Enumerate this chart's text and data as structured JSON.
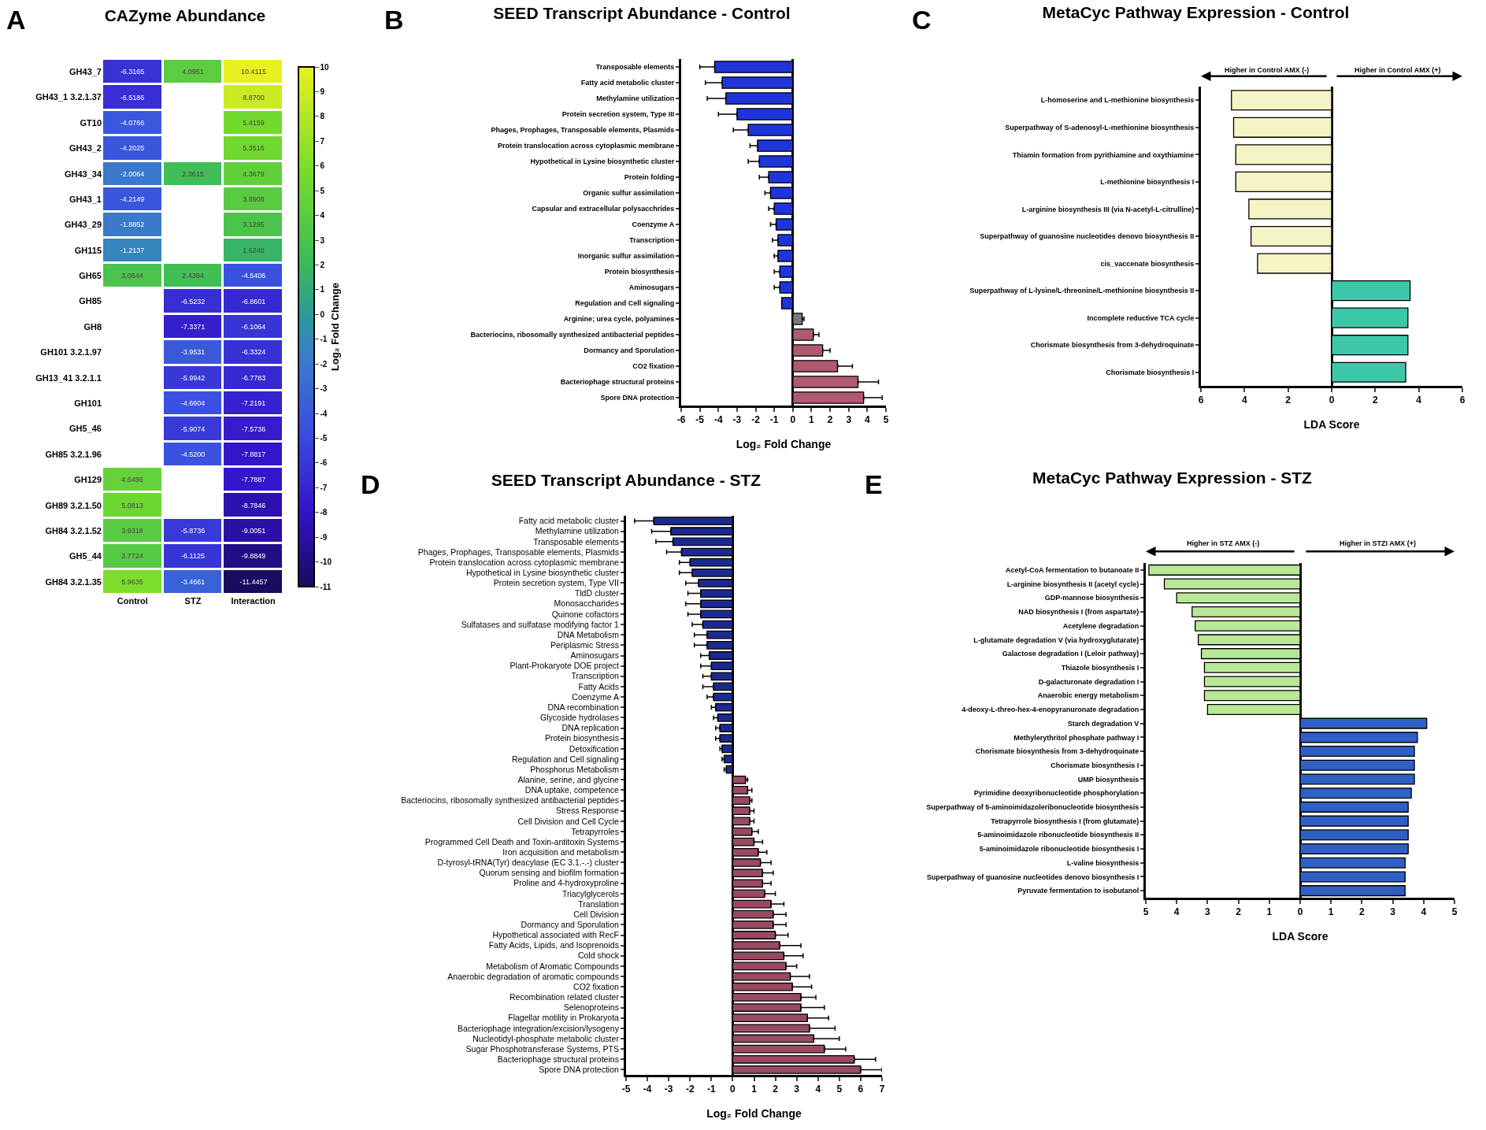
{
  "chart_data": [
    {
      "type": "heatmap",
      "title": "CAZyme Abundance",
      "annotations": [
        "A"
      ],
      "clabel": "Log₂ Fold Change",
      "categories": [
        "Control",
        "STZ",
        "Interaction"
      ],
      "y_categories": [
        "GH43_7",
        "GH43_1 3.2.1.37",
        "GT10",
        "GH43_2",
        "GH43_34",
        "GH43_1",
        "GH43_29",
        "GH115",
        "GH65",
        "GH85",
        "GH8",
        "GH101 3.2.1.97",
        "GH13_41 3.2.1.1",
        "GH101",
        "GH5_46",
        "GH85 3.2.1.96",
        "GH129",
        "GH89 3.2.1.50",
        "GH84 3.2.1.52",
        "GH5_44",
        "GH84 3.2.1.35"
      ],
      "cells": [
        [
          -6.3165,
          4.0951,
          10.4115
        ],
        [
          -6.5186,
          null,
          8.87
        ],
        [
          -4.0766,
          null,
          5.4159
        ],
        [
          -4.2025,
          null,
          5.3516
        ],
        [
          -2.0064,
          2.3615,
          4.3679
        ],
        [
          -4.2149,
          null,
          3.8908
        ],
        [
          -1.8852,
          null,
          3.1295
        ],
        [
          -1.2137,
          null,
          1.6248
        ],
        [
          3.0644,
          2.4394,
          -4.5406
        ],
        [
          null,
          -6.5232,
          -6.8601
        ],
        [
          null,
          -7.3371,
          -6.1064
        ],
        [
          null,
          -3.9531,
          -6.3324
        ],
        [
          null,
          -5.9942,
          -6.7783
        ],
        [
          null,
          -4.6604,
          -7.2191
        ],
        [
          null,
          -5.9074,
          -7.5736
        ],
        [
          null,
          -4.52,
          -7.8817
        ],
        [
          4.6486,
          null,
          -7.7887
        ],
        [
          5.0813,
          null,
          -8.7846
        ],
        [
          3.9318,
          -5.8736,
          -9.0051
        ],
        [
          3.7724,
          -6.1125,
          -9.8849
        ],
        [
          5.9635,
          -3.4661,
          -11.4457
        ]
      ],
      "cell_labels": [
        [
          "-6.3165",
          "4.0951",
          "10.4115"
        ],
        [
          "-6.5186",
          null,
          "8.8700"
        ],
        [
          "-4.0766",
          null,
          "5.4159"
        ],
        [
          "-4.2025",
          null,
          "5.3516"
        ],
        [
          "-2.0064",
          "2.3615",
          "4.3679"
        ],
        [
          "-4.2149",
          null,
          "3.8908"
        ],
        [
          "-1.8852",
          null,
          "3.1295"
        ],
        [
          "-1.2137",
          null,
          "1.6248"
        ],
        [
          "3.0644",
          "2.4394",
          "-4.5406"
        ],
        [
          null,
          "-6.5232",
          "-6.8601"
        ],
        [
          null,
          "-7.3371",
          "-6.1064"
        ],
        [
          null,
          "-3.9531",
          "-6.3324"
        ],
        [
          null,
          "-5.9942",
          "-6.7783"
        ],
        [
          null,
          "-4.6604",
          "-7.2191"
        ],
        [
          null,
          "-5.9074",
          "-7.5736"
        ],
        [
          null,
          "-4.5200",
          "-7.8817"
        ],
        [
          "4.6486",
          null,
          "-7.7887"
        ],
        [
          "5.0813",
          null,
          "-8.7846"
        ],
        [
          "3.9318",
          "-5.8736",
          "-9.0051"
        ],
        [
          "3.7724",
          "-6.1125",
          "-9.8849"
        ],
        [
          "5.9635",
          "-3.4661",
          "-11.4457"
        ]
      ],
      "clim": [
        -11,
        10
      ],
      "cticks": [
        -11,
        -10,
        -9,
        -8,
        -7,
        -6,
        -5,
        -4,
        -3,
        -2,
        -1,
        0,
        1,
        2,
        3,
        4,
        5,
        6,
        7,
        8,
        9,
        10
      ]
    },
    {
      "type": "bar",
      "orientation": "horizontal",
      "title": "SEED Transcript Abundance - Control",
      "annotations": [
        "B"
      ],
      "xlabel": "Log₂ Fold Change",
      "categories": [
        "Transposable elements",
        "Fatty acid metabolic cluster",
        "Methylamine utilization",
        "Protein secretion system, Type III",
        "Phages, Prophages, Transposable elements, Plasmids",
        "Protein translocation across cytoplasmic membrane",
        "Hypothetical in Lysine biosynthetic cluster",
        "Protein folding",
        "Organic sulfur assimilation",
        "Capsular and extracellular polysacchrides",
        "Coenzyme A",
        "Transcription",
        "Inorganic sulfur assimilation",
        "Protein biosynthesis",
        "Aminosugars",
        "Regulation and Cell signaling",
        "Arginine; urea cycle, polyamines",
        "Bacteriocins, ribosomally synthesized antibacterial peptides",
        "Dormancy and Sporulation",
        "CO2 fixation",
        "Bacteriophage structural proteins",
        "Spore DNA protection"
      ],
      "values": [
        -4.2,
        -3.8,
        -3.6,
        -3.0,
        -2.4,
        -1.9,
        -1.8,
        -1.3,
        -1.2,
        -1.0,
        -0.9,
        -0.8,
        -0.8,
        -0.7,
        -0.7,
        -0.6,
        0.5,
        1.1,
        1.6,
        2.4,
        3.5,
        3.8
      ],
      "errors": [
        [
          -5.0,
          -4.2
        ],
        [
          -4.7,
          -3.8
        ],
        [
          -4.6,
          -3.6
        ],
        [
          -4.0,
          -3.0
        ],
        [
          -3.2,
          -2.4
        ],
        [
          -2.3,
          -1.9
        ],
        [
          -2.4,
          -1.8
        ],
        [
          -1.8,
          -1.3
        ],
        [
          -1.5,
          -1.2
        ],
        [
          -1.3,
          -1.0
        ],
        [
          -1.2,
          -0.9
        ],
        [
          -1.1,
          -0.8
        ],
        [
          -1.0,
          -0.8
        ],
        [
          -1.0,
          -0.7
        ],
        [
          -1.0,
          -0.7
        ],
        null,
        [
          0.5,
          0.6
        ],
        [
          1.1,
          1.4
        ],
        [
          1.6,
          2.0
        ],
        [
          2.4,
          3.2
        ],
        [
          3.5,
          4.6
        ],
        [
          3.8,
          4.8
        ]
      ],
      "colors": [
        "#1f35d8",
        "#1f35d8",
        "#1f35d8",
        "#1f35d8",
        "#1f35d8",
        "#1f35d8",
        "#1f35d8",
        "#1f35d8",
        "#1f35d8",
        "#1f35d8",
        "#1f35d8",
        "#1f35d8",
        "#1f35d8",
        "#1f35d8",
        "#1f35d8",
        "#1f35d8",
        "#7a7a7a",
        "#b05a6e",
        "#b05a6e",
        "#b05a6e",
        "#b05a6e",
        "#b05a6e"
      ],
      "xlim": [
        -6,
        5
      ],
      "xticks": [
        -6,
        -5,
        -4,
        -3,
        -2,
        -1,
        0,
        1,
        2,
        3,
        4,
        5
      ]
    },
    {
      "type": "bar",
      "orientation": "horizontal",
      "title": "MetaCyc Pathway Expression - Control",
      "annotations": [
        "C",
        "Higher in Control AMX (-)",
        "Higher in Control AMX (+)"
      ],
      "xlabel": "LDA Score",
      "categories": [
        "L-homoserine and L-methionine biosynthesis",
        "Superpathway of S-adenosyl-L-methionine biosynthesis",
        "Thiamin formation from pyrithiamine and oxythiamine",
        "L-methionine biosynthesis I",
        "L-arginine biosynthesis III (via N-acetyl-L-citrulline)",
        "Superpathway of guanosine nucleotides denovo biosynthesis II",
        "cis_vaccenate biosynthesis",
        "Superpathway of L-lysine/L-threonine/L-methionine biosynthesis II",
        "Incomplete reductive TCA cycle",
        "Chorismate biosynthesis from 3-dehydroquinate",
        "Chorismate biosynthesis I"
      ],
      "values": [
        -4.6,
        -4.5,
        -4.4,
        -4.4,
        -3.8,
        -3.7,
        -3.4,
        3.6,
        3.5,
        3.5,
        3.4
      ],
      "colors": [
        "#f4f4c4",
        "#f4f4c4",
        "#f4f4c4",
        "#f4f4c4",
        "#f4f4c4",
        "#f4f4c4",
        "#f4f4c4",
        "#3cc8a8",
        "#3cc8a8",
        "#3cc8a8",
        "#3cc8a8"
      ],
      "xlim": [
        -6,
        6
      ],
      "xticks": [
        {
          "value": -6,
          "label": "6"
        },
        {
          "value": -4,
          "label": "4"
        },
        {
          "value": -2,
          "label": "2"
        },
        0,
        2,
        4,
        6
      ]
    },
    {
      "type": "bar",
      "orientation": "horizontal",
      "title": "SEED Transcript Abundance - STZ",
      "annotations": [
        "D"
      ],
      "xlabel": "Log₂ Fold Change",
      "categories": [
        "Fatty acid metabolic cluster",
        "Methylamine utilization",
        "Transposable elements",
        "Phages, Prophages, Transposable elements, Plasmids",
        "Protein translocation across cytoplasmic membrane",
        "Hypothetical in Lysine biosynthetic cluster",
        "Protein secretion system, Type VII",
        "TldD cluster",
        "Monosaccharides",
        "Quinone cofactors",
        "Sulfatases and sulfatase modifying factor 1",
        "DNA Metabolism",
        "Periplasmic Stress",
        "Aminosugars",
        "Plant-Prokaryote DOE project",
        "Transcription",
        "Fatty Acids",
        "Coenzyme A",
        "DNA recombination",
        "Glycoside hydrolases",
        "DNA replication",
        "Protein biosynthesis",
        "Detoxification",
        "Regulation and Cell signaling",
        "Phosphorus Metabolism",
        "Alanine, serine, and glycine",
        "DNA uptake, competence",
        "Bacteriocins, ribosomally synthesized antibacterial peptides",
        "Stress Response",
        "Cell Division and Cell Cycle",
        "Tetrapyrroles",
        "Programmed Cell Death and Toxin-antitoxin Systems",
        "Iron acquisition and metabolism",
        "D-tyrosyl-tRNA(Tyr) deacylase (EC 3.1.-.-) cluster",
        "Quorum sensing and biofilm formation",
        "Proline and 4-hydroxyproline",
        "Triacylglycerols",
        "Translation",
        "Cell Division",
        "Dormancy and Sporulation",
        "Hypothetical associated with RecF",
        "Fatty Acids, Lipids, and Isoprenoids",
        "Cold shock",
        "Metabolism of Aromatic Compounds",
        "Anaerobic degradation of aromatic compounds",
        "CO2 fixation",
        "Recombination related cluster",
        "Selenoproteins",
        "Flagellar motility in Prokaryota",
        "Bacteriophage integration/excision/lysogeny",
        "Nucleotidyl-phosphate metabolic cluster",
        "Sugar Phosphotransferase Systems, PTS",
        "Bacteriophage structural proteins",
        "Spore DNA protection"
      ],
      "values": [
        -3.7,
        -2.9,
        -2.8,
        -2.4,
        -2.0,
        -1.9,
        -1.6,
        -1.5,
        -1.5,
        -1.5,
        -1.4,
        -1.2,
        -1.2,
        -1.1,
        -1.0,
        -1.0,
        -0.9,
        -0.9,
        -0.8,
        -0.7,
        -0.6,
        -0.6,
        -0.5,
        -0.4,
        -0.3,
        0.6,
        0.7,
        0.8,
        0.8,
        0.8,
        0.9,
        1.0,
        1.2,
        1.3,
        1.4,
        1.4,
        1.5,
        1.8,
        1.9,
        1.9,
        2.0,
        2.2,
        2.4,
        2.5,
        2.7,
        2.8,
        3.2,
        3.2,
        3.5,
        3.6,
        3.8,
        4.3,
        5.7,
        6.0
      ],
      "errors": [
        [
          -4.6,
          -3.7
        ],
        [
          -3.8,
          -2.9
        ],
        [
          -3.6,
          -2.8
        ],
        [
          -3.1,
          -2.4
        ],
        [
          -2.5,
          -2.0
        ],
        [
          -2.5,
          -1.9
        ],
        [
          -2.2,
          -1.6
        ],
        [
          -2.1,
          -1.5
        ],
        [
          -2.2,
          -1.5
        ],
        [
          -2.1,
          -1.5
        ],
        [
          -1.9,
          -1.4
        ],
        [
          -1.8,
          -1.2
        ],
        [
          -1.8,
          -1.2
        ],
        [
          -1.5,
          -1.1
        ],
        [
          -1.5,
          -1.0
        ],
        [
          -1.4,
          -1.0
        ],
        [
          -1.4,
          -0.9
        ],
        [
          -1.2,
          -0.9
        ],
        [
          -1.0,
          -0.8
        ],
        [
          -0.9,
          -0.7
        ],
        [
          -0.8,
          -0.6
        ],
        [
          -0.8,
          -0.6
        ],
        [
          -0.6,
          -0.5
        ],
        [
          -0.5,
          -0.4
        ],
        [
          -0.4,
          -0.3
        ],
        [
          0.6,
          0.7
        ],
        [
          0.7,
          0.9
        ],
        [
          0.8,
          0.9
        ],
        [
          0.8,
          1.0
        ],
        [
          0.8,
          1.0
        ],
        [
          0.9,
          1.2
        ],
        [
          1.0,
          1.4
        ],
        [
          1.2,
          1.6
        ],
        [
          1.3,
          1.8
        ],
        [
          1.4,
          1.9
        ],
        [
          1.4,
          1.8
        ],
        [
          1.5,
          2.0
        ],
        [
          1.8,
          2.4
        ],
        [
          1.9,
          2.5
        ],
        [
          1.9,
          2.5
        ],
        [
          2.0,
          2.6
        ],
        [
          2.2,
          3.2
        ],
        [
          2.4,
          3.3
        ],
        [
          2.5,
          3.0
        ],
        [
          2.7,
          3.6
        ],
        [
          2.8,
          3.7
        ],
        [
          3.2,
          3.9
        ],
        [
          3.2,
          4.3
        ],
        [
          3.5,
          4.5
        ],
        [
          3.6,
          4.8
        ],
        [
          3.8,
          5.0
        ],
        [
          4.3,
          5.3
        ],
        [
          5.7,
          6.7
        ],
        [
          6.0,
          7.0
        ]
      ],
      "colors": [
        "#1c2a90",
        "#1c2a90",
        "#1c2a90",
        "#1c2a90",
        "#1c2a90",
        "#1c2a90",
        "#1c2a90",
        "#1c2a90",
        "#1c2a90",
        "#1c2a90",
        "#1c2a90",
        "#1c2a90",
        "#1c2a90",
        "#1c2a90",
        "#1c2a90",
        "#1c2a90",
        "#1c2a90",
        "#1c2a90",
        "#1c2a90",
        "#1c2a90",
        "#1c2a90",
        "#1c2a90",
        "#1c2a90",
        "#1c2a90",
        "#1c2a90",
        "#9a4a60",
        "#9a4a60",
        "#9a4a60",
        "#9a4a60",
        "#9a4a60",
        "#9a4a60",
        "#9a4a60",
        "#9a4a60",
        "#9a4a60",
        "#9a4a60",
        "#9a4a60",
        "#9a4a60",
        "#9a4a60",
        "#9a4a60",
        "#9a4a60",
        "#9a4a60",
        "#9a4a60",
        "#9a4a60",
        "#9a4a60",
        "#9a4a60",
        "#9a4a60",
        "#9a4a60",
        "#9a4a60",
        "#9a4a60",
        "#9a4a60",
        "#9a4a60",
        "#9a4a60",
        "#9a4a60",
        "#9a4a60"
      ],
      "xlim": [
        -5,
        7
      ],
      "xticks": [
        -5,
        -4,
        -3,
        -2,
        -1,
        0,
        1,
        2,
        3,
        4,
        5,
        6,
        7
      ]
    },
    {
      "type": "bar",
      "orientation": "horizontal",
      "title": "MetaCyc Pathway Expression - STZ",
      "annotations": [
        "E",
        "Higher in STZ AMX (-)",
        "Higher in STZI AMX (+)"
      ],
      "xlabel": "LDA Score",
      "categories": [
        "Acetyl-CoA fermentation to butanoate II",
        "L-arginine biosynthesis II (acetyl cycle)",
        "GDP-mannose biosynthesis",
        "NAD biosynthesis I (from aspartate)",
        "Acetylene degradation",
        "L-glutamate degradation V (via hydroxyglutarate)",
        "Galactose degradation I (Leloir pathway)",
        "Thiazole biosynthesis I",
        "D-galacturonate degradation I",
        "Anaerobic energy metabolism",
        "4-deoxy-L-threo-hex-4-enopyranuronate degradation",
        "Starch degradation V",
        "Methylerythritol phosphate pathway I",
        "Chorismate biosynthesis from 3-dehydroquinate",
        "Chorismate biosynthesis I",
        "UMP biosynthesis",
        "Pyrimidine deoxyribonucleotide phosphorylation",
        "Superpathway of 5-aminoimidazoleribonucleotide biosynthesis",
        "Tetrapyrrole biosynthesis I (from glutamate)",
        "5-aminoimidazole ribonucleotide biosynthesis II",
        "5-aminoimidazole ribonucleotide biosynthesis I",
        "L-valine biosynthesis",
        "Superpathway of guanosine nucleotides denovo biosynthesis I",
        "Pyruvate fermentation to isobutanol"
      ],
      "values": [
        -4.9,
        -4.4,
        -4.0,
        -3.5,
        -3.4,
        -3.3,
        -3.2,
        -3.1,
        -3.1,
        -3.1,
        -3.0,
        4.1,
        3.8,
        3.7,
        3.7,
        3.7,
        3.6,
        3.5,
        3.5,
        3.5,
        3.5,
        3.4,
        3.4,
        3.4
      ],
      "colors": [
        "#b8e895",
        "#b8e895",
        "#b8e895",
        "#b8e895",
        "#b8e895",
        "#b8e895",
        "#b8e895",
        "#b8e895",
        "#b8e895",
        "#b8e895",
        "#b8e895",
        "#2f5fc4",
        "#2f5fc4",
        "#2f5fc4",
        "#2f5fc4",
        "#2f5fc4",
        "#2f5fc4",
        "#2f5fc4",
        "#2f5fc4",
        "#2f5fc4",
        "#2f5fc4",
        "#2f5fc4",
        "#2f5fc4",
        "#2f5fc4"
      ],
      "xlim": [
        -5,
        5
      ],
      "xticks": [
        {
          "value": -5,
          "label": "5"
        },
        {
          "value": -4,
          "label": "4"
        },
        {
          "value": -3,
          "label": "3"
        },
        {
          "value": -2,
          "label": "2"
        },
        {
          "value": -1,
          "label": "1"
        },
        0,
        1,
        2,
        3,
        4,
        5
      ]
    }
  ]
}
